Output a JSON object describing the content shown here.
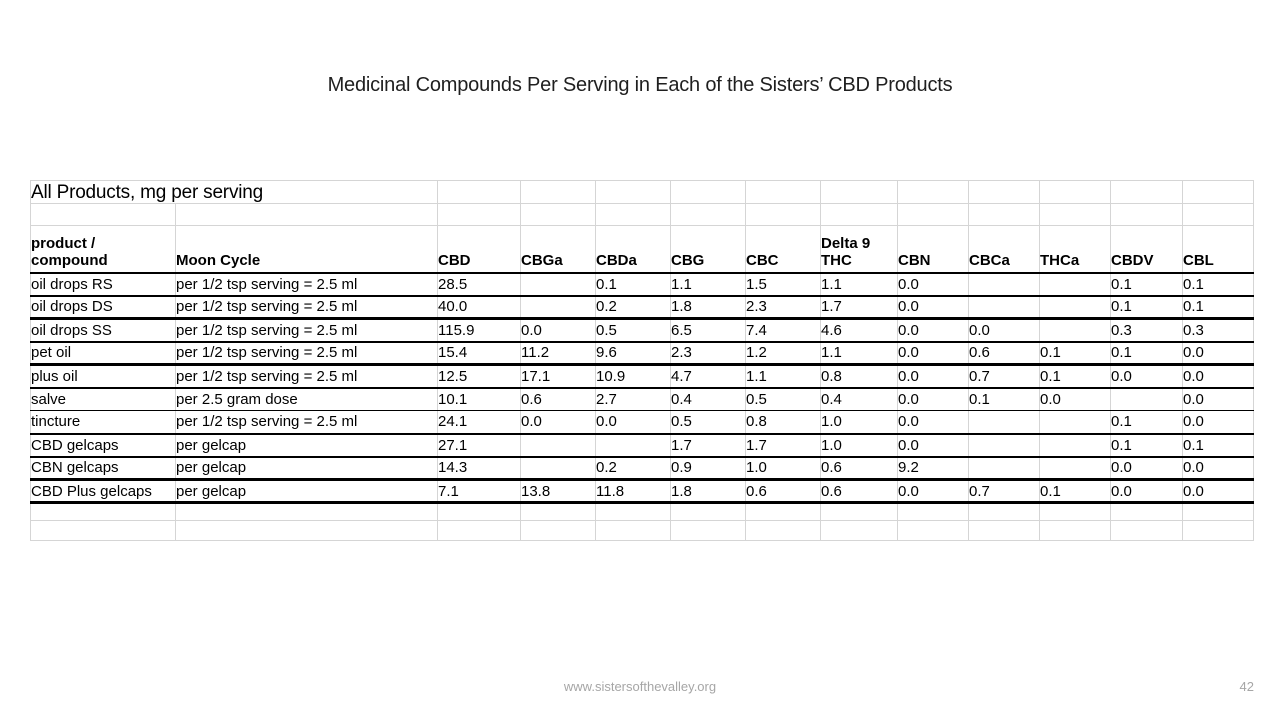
{
  "slide_title": "Medicinal Compounds Per Serving in Each of the Sisters’ CBD Products",
  "table": {
    "caption": "All Products, mg per serving",
    "row_header": {
      "line1": "product /",
      "line2": "compound"
    },
    "moon_cycle_header": "Moon Cycle",
    "compound_headers": [
      {
        "line1": "",
        "line2": "CBD"
      },
      {
        "line1": "",
        "line2": "CBGa"
      },
      {
        "line1": "",
        "line2": "CBDa"
      },
      {
        "line1": "",
        "line2": "CBG"
      },
      {
        "line1": "",
        "line2": "CBC"
      },
      {
        "line1": "Delta 9",
        "line2": "THC"
      },
      {
        "line1": "",
        "line2": "CBN"
      },
      {
        "line1": "",
        "line2": "CBCa"
      },
      {
        "line1": "",
        "line2": "THCa"
      },
      {
        "line1": "",
        "line2": "CBDV"
      },
      {
        "line1": "",
        "line2": "CBL"
      }
    ],
    "rows": [
      {
        "product": "oil drops RS",
        "moon_cycle": "per 1/2 tsp serving = 2.5 ml",
        "values": [
          "28.5",
          "",
          "0.1",
          "1.1",
          "1.5",
          "1.1",
          "0.0",
          "",
          "",
          "0.1",
          "0.1"
        ]
      },
      {
        "product": "oil drops DS",
        "moon_cycle": "per 1/2 tsp serving = 2.5 ml",
        "values": [
          "40.0",
          "",
          "0.2",
          "1.8",
          "2.3",
          "1.7",
          "0.0",
          "",
          "",
          "0.1",
          "0.1"
        ]
      },
      {
        "product": "oil drops SS",
        "moon_cycle": "per 1/2 tsp serving = 2.5 ml",
        "values": [
          "115.9",
          "0.0",
          "0.5",
          "6.5",
          "7.4",
          "4.6",
          "0.0",
          "0.0",
          "",
          "0.3",
          "0.3"
        ]
      },
      {
        "product": "pet oil",
        "moon_cycle": "per 1/2 tsp serving = 2.5 ml",
        "values": [
          "15.4",
          "11.2",
          "9.6",
          "2.3",
          "1.2",
          "1.1",
          "0.0",
          "0.6",
          "0.1",
          "0.1",
          "0.0"
        ]
      },
      {
        "product": "plus oil",
        "moon_cycle": "per 1/2 tsp serving = 2.5 ml",
        "values": [
          "12.5",
          "17.1",
          "10.9",
          "4.7",
          "1.1",
          "0.8",
          "0.0",
          "0.7",
          "0.1",
          "0.0",
          "0.0"
        ]
      },
      {
        "product": "salve",
        "moon_cycle": "per 2.5 gram dose",
        "values": [
          "10.1",
          "0.6",
          "2.7",
          "0.4",
          "0.5",
          "0.4",
          "0.0",
          "0.1",
          "0.0",
          "",
          "0.0"
        ]
      },
      {
        "product": "tincture",
        "moon_cycle": "per 1/2 tsp serving = 2.5 ml",
        "values": [
          "24.1",
          "0.0",
          "0.0",
          "0.5",
          "0.8",
          "1.0",
          "0.0",
          "",
          "",
          "0.1",
          "0.0"
        ]
      },
      {
        "product": "CBD gelcaps",
        "moon_cycle": "per gelcap",
        "values": [
          "27.1",
          "",
          "",
          "1.7",
          "1.7",
          "1.0",
          "0.0",
          "",
          "",
          "0.1",
          "0.1"
        ]
      },
      {
        "product": "CBN gelcaps",
        "moon_cycle": "per gelcap",
        "values": [
          "14.3",
          "",
          "0.2",
          "0.9",
          "1.0",
          "0.6",
          "9.2",
          "",
          "",
          "0.0",
          "0.0"
        ]
      },
      {
        "product": "CBD Plus gelcaps",
        "moon_cycle": "per gelcap",
        "values": [
          "7.1",
          "13.8",
          "11.8",
          "1.8",
          "0.6",
          "0.6",
          "0.0",
          "0.7",
          "0.1",
          "0.0",
          "0.0"
        ]
      }
    ]
  },
  "footer": {
    "website": "www.sistersofthevalley.org",
    "page_number": "42"
  },
  "colors": {
    "background": "#ffffff",
    "text": "#000000",
    "grid_line": "#d5d5d5",
    "rule_line": "#000000",
    "footer_text": "#a6a6a6"
  }
}
